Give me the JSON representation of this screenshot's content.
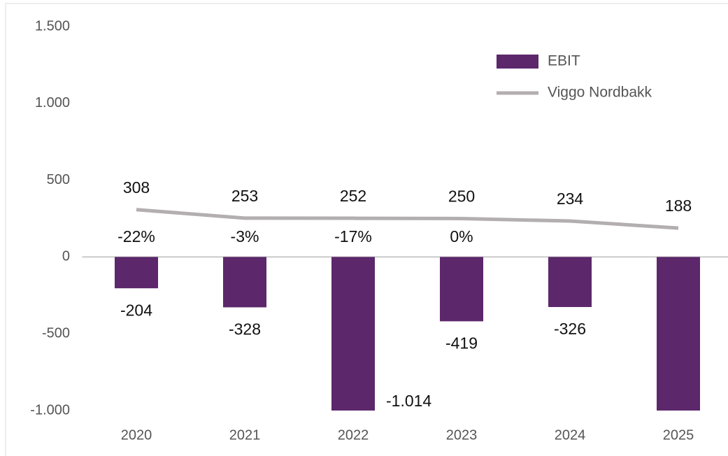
{
  "chart_data": {
    "type": "bar",
    "categories": [
      "2020",
      "2021",
      "2022",
      "2023",
      "2024",
      "2025"
    ],
    "series": [
      {
        "name": "EBIT",
        "type": "bar",
        "color": "#5c276b",
        "values": [
          -204,
          -328,
          -1014,
          -419,
          -326,
          -1000
        ],
        "value_labels": [
          "-204",
          "-328",
          "-1.014",
          "-419",
          "-326",
          null
        ]
      },
      {
        "name": "Viggo Nordbakk",
        "type": "line",
        "color": "#b3aeb0",
        "values": [
          308,
          253,
          252,
          250,
          234,
          188
        ]
      }
    ],
    "annotations": [
      "-22%",
      "-3%",
      "-17%",
      "0%",
      null,
      null
    ],
    "ylim": [
      -1000,
      1500
    ],
    "yticks": [
      {
        "value": -1000,
        "label": "-1.000"
      },
      {
        "value": -500,
        "label": "-500"
      },
      {
        "value": 0,
        "label": "0"
      },
      {
        "value": 500,
        "label": "500"
      },
      {
        "value": 1000,
        "label": "1.000"
      },
      {
        "value": 1500,
        "label": "1.500"
      }
    ],
    "legend": "top-right"
  }
}
